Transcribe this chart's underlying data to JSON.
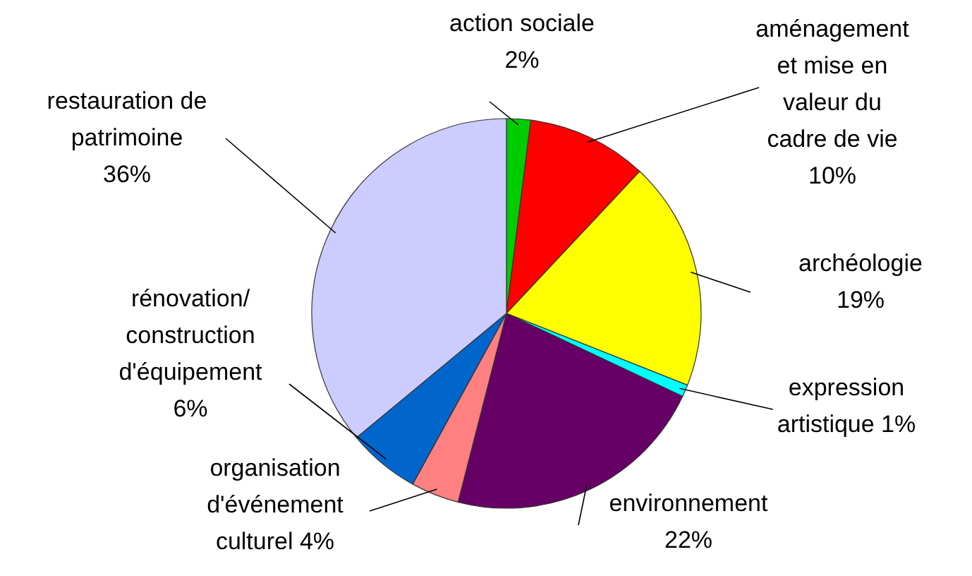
{
  "chart_data": {
    "type": "pie",
    "categories": [
      "action sociale",
      "aménagement et mise en valeur du cadre de vie",
      "archéologie",
      "expression artistique",
      "environnement",
      "organisation d'événement culturel",
      "rénovation/ construction d'équipement",
      "restauration de patrimoine"
    ],
    "values": [
      2,
      10,
      19,
      1,
      22,
      4,
      6,
      36
    ],
    "value_labels": [
      "2%",
      "10%",
      "19%",
      "1%",
      "22%",
      "4%",
      "6%",
      "36%"
    ],
    "colors": [
      "#00cc00",
      "#ff0000",
      "#ffff00",
      "#00ffff",
      "#660066",
      "#ff8080",
      "#0066cc",
      "#ccccff"
    ]
  }
}
